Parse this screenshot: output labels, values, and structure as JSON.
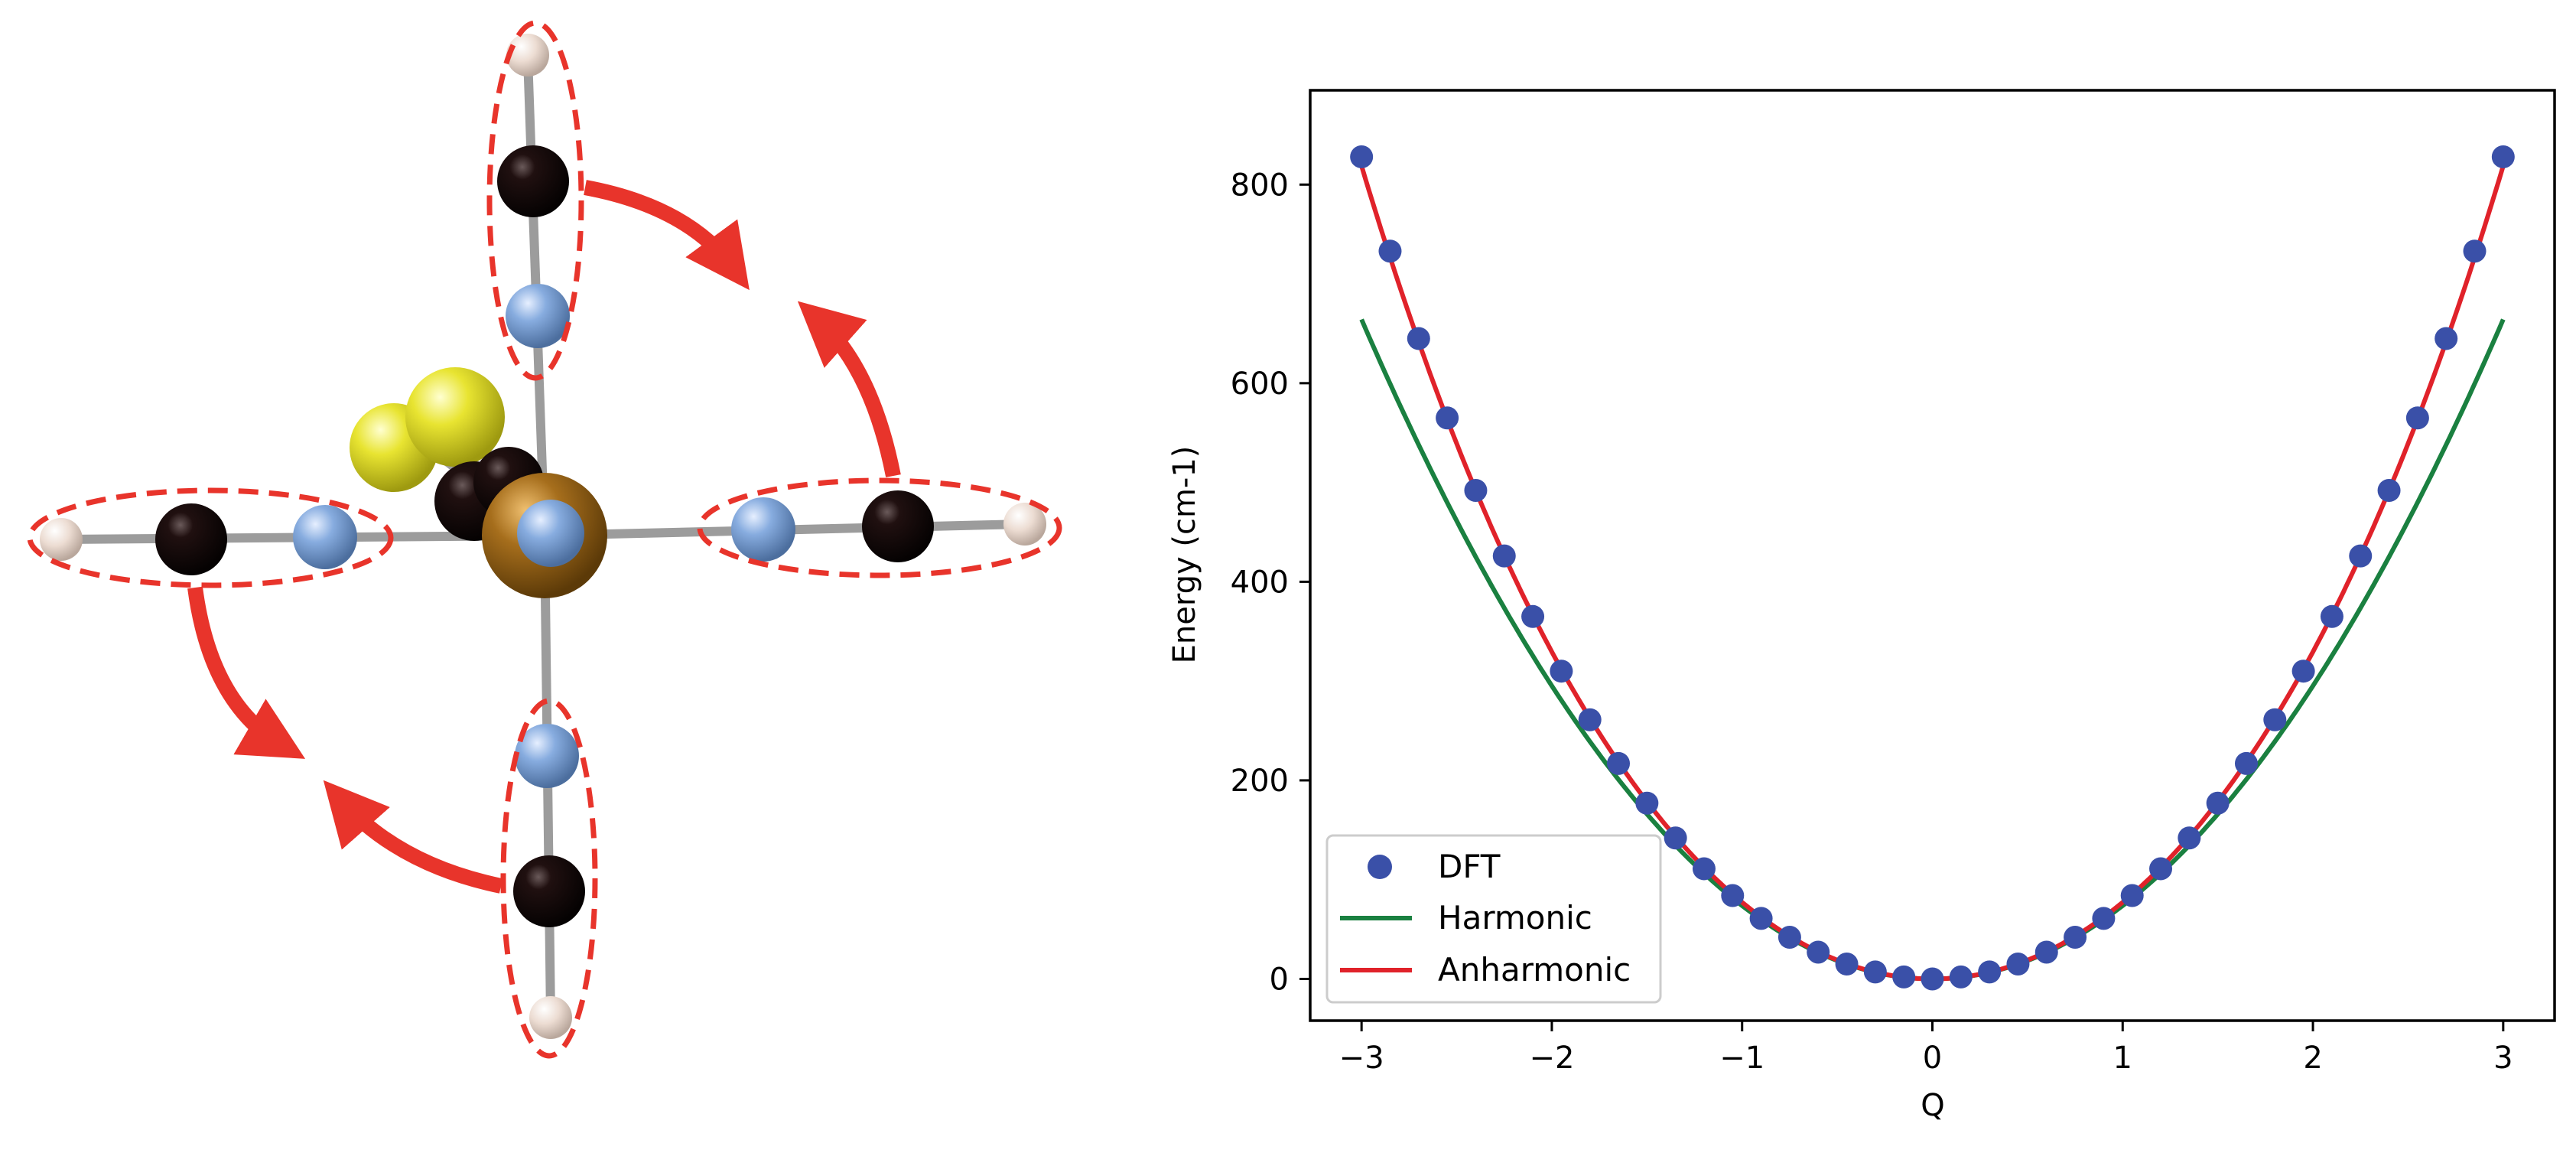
{
  "molecule": {
    "description_labels": []
  },
  "chart_data": {
    "type": "scatter+line",
    "title": "",
    "xlabel": "Q",
    "ylabel": "Energy (cm-1)",
    "xlim": [
      -3.27,
      3.27
    ],
    "ylim": [
      -42,
      895
    ],
    "xticks": [
      -3,
      -2,
      -1,
      0,
      1,
      2,
      3
    ],
    "xtick_labels": [
      "−3",
      "−2",
      "−1",
      "0",
      "1",
      "2",
      "3"
    ],
    "yticks": [
      0,
      200,
      400,
      600,
      800
    ],
    "ytick_labels": [
      "0",
      "200",
      "400",
      "600",
      "800"
    ],
    "legend_position": "lower-left",
    "series": [
      {
        "name": "DFT",
        "kind": "scatter",
        "color": "#3a50a8",
        "x": [
          -3.0,
          -2.85,
          -2.7,
          -2.55,
          -2.4,
          -2.25,
          -2.1,
          -1.95,
          -1.8,
          -1.65,
          -1.5,
          -1.35,
          -1.2,
          -1.05,
          -0.9,
          -0.75,
          -0.6,
          -0.45,
          -0.3,
          -0.15,
          0.0,
          0.15,
          0.3,
          0.45,
          0.6,
          0.75,
          0.9,
          1.05,
          1.2,
          1.35,
          1.5,
          1.65,
          1.8,
          1.95,
          2.1,
          2.25,
          2.4,
          2.55,
          2.7,
          2.85,
          3.0
        ],
        "y": [
          828,
          733,
          645,
          565,
          492,
          426,
          365,
          310,
          261,
          217,
          177,
          142,
          111,
          84,
          61,
          42,
          27,
          15,
          7,
          2,
          0,
          2,
          7,
          15,
          27,
          42,
          61,
          84,
          111,
          142,
          177,
          217,
          261,
          310,
          365,
          426,
          492,
          565,
          645,
          733,
          828
        ]
      },
      {
        "name": "Harmonic",
        "kind": "line",
        "color": "#1a8040",
        "formula": "73.8*Q^2",
        "coefficients": {
          "a2": 73.8
        }
      },
      {
        "name": "Anharmonic",
        "kind": "line",
        "color": "#e0222a",
        "formula": "75.5*Q^2 + 1.72*Q^4",
        "coefficients": {
          "a2": 75.5,
          "a4": 1.72
        }
      }
    ]
  },
  "colors": {
    "arrow": "#e8342b",
    "ellipse": "#e8342b",
    "carbon": "#0d0505",
    "nitrogen": "#7aa2d8",
    "hydrogen": "#ead7cc",
    "sulfur": "#e6e22a",
    "metal": "#9a6418",
    "bond": "#9c9c9c"
  }
}
